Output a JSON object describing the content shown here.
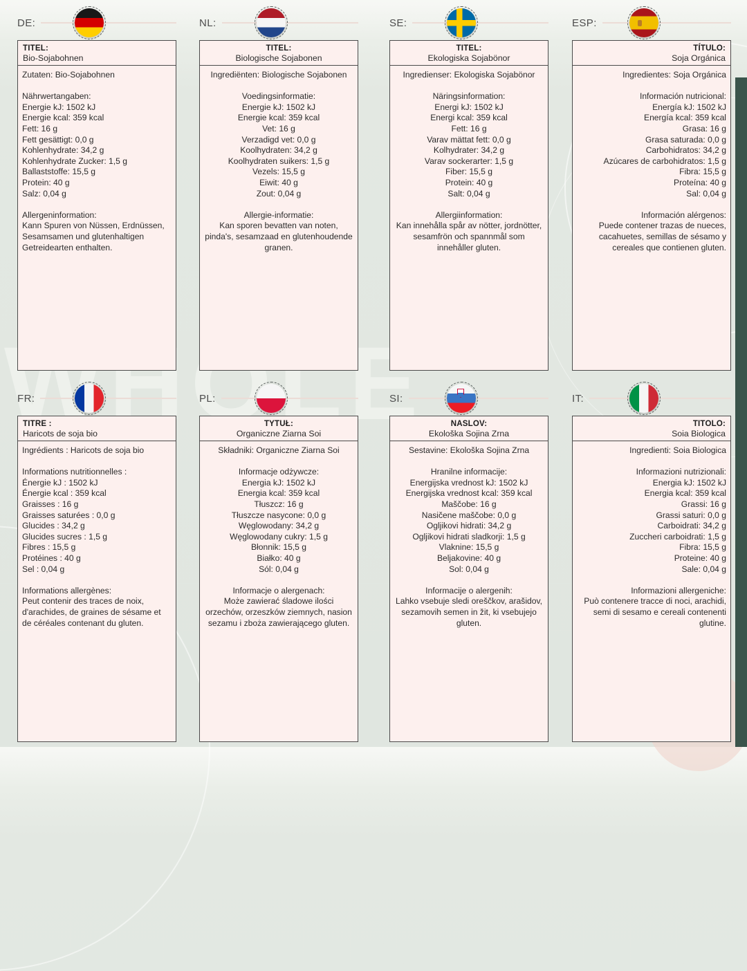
{
  "background": {
    "watermark": "WHOLE"
  },
  "colors": {
    "page_bg": "#e3e8e2",
    "card_bg": "#fdf0ee",
    "card_border": "#4a4a4a",
    "header_line": "#ecdcd6",
    "right_edge_strip": "#3a544b",
    "text": "#2b2b2b"
  },
  "panels": [
    {
      "code": "DE:",
      "flag_class": "de",
      "flag_name": "germany-flag-icon",
      "align": "left",
      "title_label": "TITEL:",
      "title": "Bio-Sojabohnen",
      "body": [
        "Zutaten: Bio-Sojabohnen",
        "",
        "Nährwertangaben:",
        "Energie kJ: 1502 kJ",
        "Energie kcal: 359 kcal",
        "Fett: 16 g",
        "Fett gesättigt: 0,0 g",
        "Kohlenhydrate: 34,2 g",
        "Kohlenhydrate Zucker: 1,5 g",
        "Ballaststoffe: 15,5 g",
        "Protein: 40 g",
        "Salz: 0,04 g",
        "",
        "Allergeninformation:",
        "Kann Spuren von Nüssen, Erdnüssen, Sesamsamen und glutenhaltigen Getreidearten enthalten."
      ]
    },
    {
      "code": "NL:",
      "flag_class": "nl",
      "flag_name": "netherlands-flag-icon",
      "align": "center",
      "title_label": "TITEL:",
      "title": "Biologische Sojabonen",
      "body": [
        "Ingrediënten: Biologische Sojabonen",
        "",
        "Voedingsinformatie:",
        "Energie kJ: 1502 kJ",
        "Energie kcal: 359 kcal",
        "Vet: 16 g",
        "Verzadigd vet: 0,0 g",
        "Koolhydraten: 34,2 g",
        "Koolhydraten suikers: 1,5 g",
        "Vezels: 15,5 g",
        "Eiwit: 40 g",
        "Zout: 0,04 g",
        "",
        "Allergie-informatie:",
        "Kan sporen bevatten van noten, pinda's, sesamzaad en glutenhoudende granen."
      ]
    },
    {
      "code": "SE:",
      "flag_class": "se",
      "flag_name": "sweden-flag-icon",
      "align": "center",
      "title_label": "TITEL:",
      "title": "Ekologiska Sojabönor",
      "body": [
        "Ingredienser: Ekologiska Sojabönor",
        "",
        "Näringsinformation:",
        "Energi kJ: 1502 kJ",
        "Energi kcal: 359 kcal",
        "Fett: 16 g",
        "Varav mättat fett: 0,0 g",
        "Kolhydrater: 34,2 g",
        "Varav sockerarter: 1,5 g",
        "Fiber: 15,5 g",
        "Protein: 40 g",
        "Salt: 0,04 g",
        "",
        "Allergiinformation:",
        "Kan innehålla spår av nötter, jordnötter, sesamfrön och spannmål som innehåller gluten."
      ]
    },
    {
      "code": "ESP:",
      "flag_class": "es",
      "flag_name": "spain-flag-icon",
      "align": "right",
      "title_label": "TÍTULO:",
      "title": "Soja Orgánica",
      "body": [
        "Ingredientes: Soja Orgánica",
        "",
        "Información nutricional:",
        "Energía kJ: 1502 kJ",
        "Energía kcal: 359 kcal",
        "Grasa: 16 g",
        "Grasa saturada: 0,0 g",
        "Carbohidratos: 34,2 g",
        "Azúcares de carbohidratos: 1,5 g",
        "Fibra: 15,5 g",
        "Proteína: 40 g",
        "Sal: 0,04 g",
        "",
        "Información alérgenos:",
        "Puede contener trazas de nueces, cacahuetes, semillas de sésamo y cereales que contienen gluten."
      ]
    },
    {
      "code": "FR:",
      "flag_class": "fr",
      "flag_name": "france-flag-icon",
      "align": "left",
      "title_label": "TITRE :",
      "title": "Haricots de soja bio",
      "body": [
        "Ingrédients : Haricots de soja bio",
        "",
        "Informations nutritionnelles :",
        "Énergie kJ : 1502 kJ",
        "Énergie kcal : 359 kcal",
        "Graisses : 16 g",
        "Graisses saturées : 0,0 g",
        "Glucides : 34,2 g",
        "Glucides sucres : 1,5 g",
        "Fibres : 15,5 g",
        "Protéines : 40 g",
        "Sel : 0,04 g",
        "",
        "Informations allergènes:",
        "Peut contenir des traces de noix, d'arachides, de graines de sésame et de céréales contenant du gluten."
      ]
    },
    {
      "code": "PL:",
      "flag_class": "pl",
      "flag_name": "poland-flag-icon",
      "align": "center",
      "title_label": "TYTUŁ:",
      "title": "Organiczne Ziarna Soi",
      "body": [
        "Składniki: Organiczne Ziarna Soi",
        "",
        "Informacje odżywcze:",
        "Energia kJ: 1502 kJ",
        "Energia kcal: 359 kcal",
        "Tłuszcz: 16 g",
        "Tłuszcze nasycone: 0,0 g",
        "Węglowodany: 34,2 g",
        "Węglowodany cukry: 1,5 g",
        "Błonnik: 15,5 g",
        "Białko: 40 g",
        "Sól: 0,04 g",
        "",
        "Informacje o alergenach:",
        "Może zawierać śladowe ilości orzechów, orzeszków ziemnych, nasion sezamu i zboża zawierającego gluten."
      ]
    },
    {
      "code": "SI:",
      "flag_class": "si",
      "flag_name": "slovenia-flag-icon",
      "align": "center",
      "title_label": "NASLOV:",
      "title": "Ekološka Sojina Zrna",
      "body": [
        "Sestavine: Ekološka Sojina Zrna",
        "",
        "Hranilne informacije:",
        "Energijska vrednost kJ: 1502 kJ",
        "Energijska vrednost kcal: 359 kcal",
        "Maščobe: 16 g",
        "Nasičene maščobe: 0,0 g",
        "Ogljikovi hidrati: 34,2 g",
        "Ogljikovi hidrati sladkorji: 1,5 g",
        "Vlaknine: 15,5 g",
        "Beljakovine: 40 g",
        "Sol: 0,04 g",
        "",
        "Informacije o alergenih:",
        "Lahko vsebuje sledi oreščkov, arašidov, sezamovih semen in žit, ki vsebujejo gluten."
      ]
    },
    {
      "code": "IT:",
      "flag_class": "it",
      "flag_name": "italy-flag-icon",
      "align": "right",
      "title_label": "TITOLO:",
      "title": "Soia Biologica",
      "body": [
        "Ingredienti: Soia Biologica",
        "",
        "Informazioni nutrizionali:",
        "Energia kJ: 1502 kJ",
        "Energia kcal: 359 kcal",
        "Grassi: 16 g",
        "Grassi saturi: 0,0 g",
        "Carboidrati: 34,2 g",
        "Zuccheri carboidrati: 1,5 g",
        "Fibra: 15,5 g",
        "Proteine: 40 g",
        "Sale: 0,04 g",
        "",
        "Informazioni allergeniche:",
        "Può contenere tracce di noci, arachidi, semi di sesamo e cereali contenenti glutine."
      ]
    }
  ]
}
